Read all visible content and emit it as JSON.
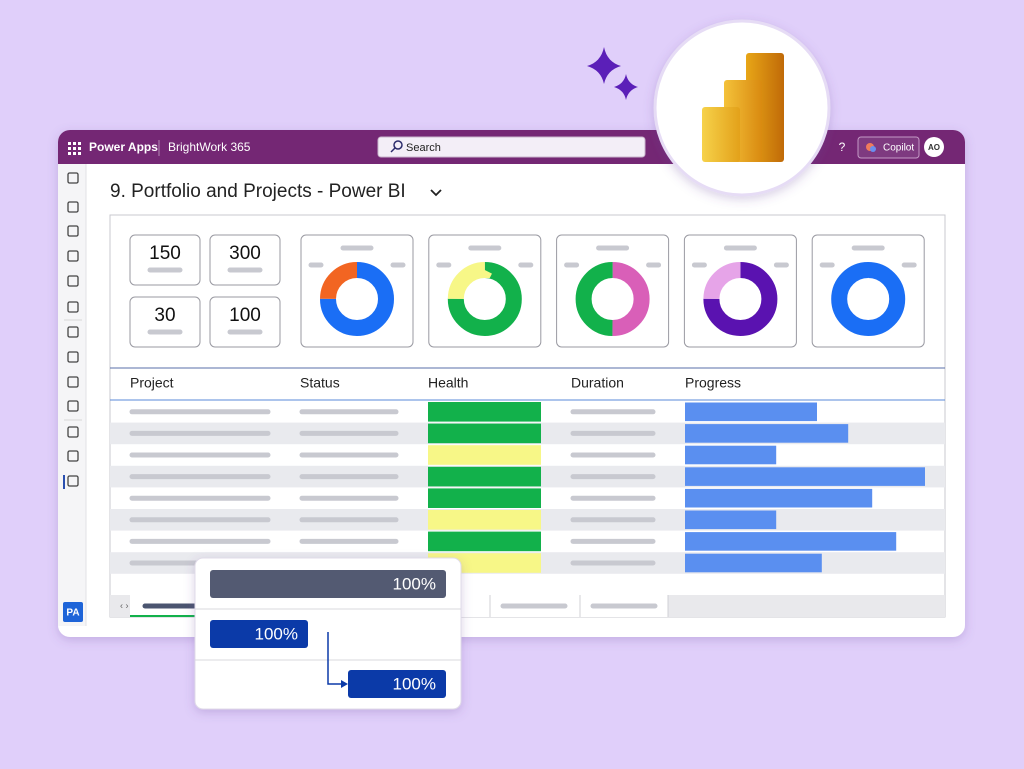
{
  "header": {
    "app_name": "Power Apps",
    "environment": "BrightWork 365",
    "search": "Search",
    "help": "?",
    "copilot": "Copilot",
    "avatar": "AO"
  },
  "sidebar": {
    "app_badge": "PA"
  },
  "page": {
    "title": "9. Portfolio and Projects - Power BI"
  },
  "kpis": [
    150,
    300,
    30,
    100
  ],
  "donuts": [
    {
      "segments": [
        {
          "value": 75,
          "color": "#1a6ef5"
        },
        {
          "value": 25,
          "color": "#f26522"
        }
      ]
    },
    {
      "segments": [
        {
          "value": 75,
          "color": "#12b14b"
        },
        {
          "value": 25,
          "color": "#f7f787"
        }
      ]
    },
    {
      "segments": [
        {
          "value": 50,
          "color": "#d95fb8"
        },
        {
          "value": 50,
          "color": "#12b14b"
        }
      ]
    },
    {
      "segments": [
        {
          "value": 75,
          "color": "#5a12b0"
        },
        {
          "value": 25,
          "color": "#e6a4e8"
        }
      ]
    },
    {
      "segments": [
        {
          "value": 100,
          "color": "#1a6ef5"
        }
      ]
    }
  ],
  "table": {
    "headers": [
      "Project",
      "Status",
      "Health",
      "Duration",
      "Progress"
    ],
    "rows": [
      {
        "health": "#12b14b",
        "progress": 55
      },
      {
        "health": "#12b14b",
        "progress": 68
      },
      {
        "health": "#f7f787",
        "progress": 38
      },
      {
        "health": "#12b14b",
        "progress": 100
      },
      {
        "health": "#12b14b",
        "progress": 78
      },
      {
        "health": "#f7f787",
        "progress": 38
      },
      {
        "health": "#12b14b",
        "progress": 88
      },
      {
        "health": "#f7f787",
        "progress": 57
      }
    ]
  },
  "popup": {
    "rows": [
      "100%",
      "100%",
      "100%"
    ]
  }
}
